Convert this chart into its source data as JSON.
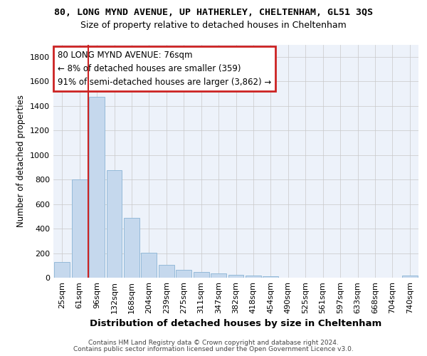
{
  "title_line1": "80, LONG MYND AVENUE, UP HATHERLEY, CHELTENHAM, GL51 3QS",
  "title_line2": "Size of property relative to detached houses in Cheltenham",
  "xlabel": "Distribution of detached houses by size in Cheltenham",
  "ylabel": "Number of detached properties",
  "footer_line1": "Contains HM Land Registry data © Crown copyright and database right 2024.",
  "footer_line2": "Contains public sector information licensed under the Open Government Licence v3.0.",
  "categories": [
    "25sqm",
    "61sqm",
    "96sqm",
    "132sqm",
    "168sqm",
    "204sqm",
    "239sqm",
    "275sqm",
    "311sqm",
    "347sqm",
    "382sqm",
    "418sqm",
    "454sqm",
    "490sqm",
    "525sqm",
    "561sqm",
    "597sqm",
    "633sqm",
    "668sqm",
    "704sqm",
    "740sqm"
  ],
  "values": [
    125,
    800,
    1475,
    875,
    490,
    205,
    105,
    65,
    45,
    35,
    25,
    20,
    10,
    0,
    0,
    0,
    0,
    0,
    0,
    0,
    15
  ],
  "bar_color": "#c5d8ed",
  "bar_edge_color": "#8ab4d4",
  "ylim": [
    0,
    1900
  ],
  "yticks": [
    0,
    200,
    400,
    600,
    800,
    1000,
    1200,
    1400,
    1600,
    1800
  ],
  "vline_x": 1.5,
  "vline_color": "#cc2222",
  "annotation_text": "80 LONG MYND AVENUE: 76sqm\n← 8% of detached houses are smaller (359)\n91% of semi-detached houses are larger (3,862) →",
  "annotation_box_edgecolor": "#cc2222",
  "background_color": "#edf2fa",
  "grid_color": "#c8c8c8",
  "title1_fontsize": 9.5,
  "title2_fontsize": 9.0,
  "xlabel_fontsize": 9.5,
  "ylabel_fontsize": 8.5,
  "tick_fontsize": 8.0,
  "annot_fontsize": 8.5,
  "footer_fontsize": 6.5
}
